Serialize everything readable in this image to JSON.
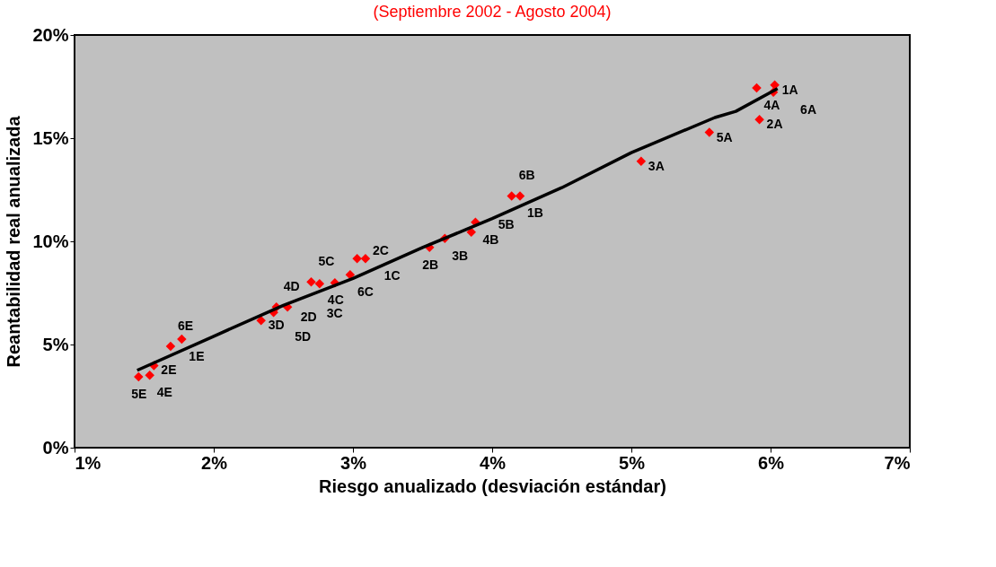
{
  "chart_data": {
    "type": "scatter",
    "subtitle": "(Septiembre 2002 - Agosto 2004)",
    "xlabel": "Riesgo anualizado (desviación estándar)",
    "ylabel": "Reantabilidad real anualizada",
    "series": [
      {
        "color": "#ff0000",
        "marker": "diamond",
        "x": [
          6.03,
          5.92,
          5.9,
          6.02,
          5.56,
          5.07,
          4.2,
          4.14,
          3.88,
          3.85,
          3.66,
          3.55,
          3.03,
          3.09,
          2.98,
          2.87,
          2.76,
          2.7,
          2.34,
          2.43,
          2.45,
          2.53,
          1.77,
          1.69,
          1.57,
          1.54,
          1.46
        ],
        "values": [
          17.58,
          15.9,
          17.43,
          17.23,
          15.28,
          13.88,
          12.2,
          12.2,
          10.92,
          10.45,
          10.14,
          9.71,
          9.16,
          9.16,
          8.38,
          7.99,
          7.95,
          8.03,
          6.16,
          6.55,
          6.82,
          6.82,
          5.26,
          4.91,
          3.98,
          3.51,
          3.43
        ]
      },
      {
        "type": "line",
        "color": "#000000",
        "line_style": "solid",
        "marker": "none",
        "x": [
          1.45,
          2.0,
          2.5,
          3.0,
          3.5,
          4.0,
          4.5,
          5.0,
          5.6,
          5.75,
          6.05
        ],
        "values": [
          3.75,
          5.4,
          6.9,
          8.2,
          9.7,
          11.1,
          12.6,
          14.3,
          16.0,
          16.3,
          17.4
        ]
      }
    ],
    "annotations": [
      {
        "text": "1A",
        "x": 6.03,
        "y": 17.58
      },
      {
        "text": "2A",
        "x": 5.92,
        "y": 15.9
      },
      {
        "text": "4A",
        "x": 5.9,
        "y": 17.43
      },
      {
        "text": "6A",
        "x": 6.02,
        "y": 17.23
      },
      {
        "text": "5A",
        "x": 5.56,
        "y": 15.28
      },
      {
        "text": "3A",
        "x": 5.07,
        "y": 13.88
      },
      {
        "text": "1B",
        "x": 4.2,
        "y": 12.2
      },
      {
        "text": "6B",
        "x": 4.14,
        "y": 12.2
      },
      {
        "text": "4B",
        "x": 3.88,
        "y": 10.92
      },
      {
        "text": "5B",
        "x": 3.85,
        "y": 10.45
      },
      {
        "text": "3B",
        "x": 3.66,
        "y": 10.14
      },
      {
        "text": "2B",
        "x": 3.55,
        "y": 9.71
      },
      {
        "text": "1C",
        "x": 3.03,
        "y": 9.16
      },
      {
        "text": "2C",
        "x": 3.09,
        "y": 9.16
      },
      {
        "text": "6C",
        "x": 2.98,
        "y": 8.38
      },
      {
        "text": "4C",
        "x": 2.87,
        "y": 7.99
      },
      {
        "text": "3C",
        "x": 2.76,
        "y": 7.95
      },
      {
        "text": "5C",
        "x": 2.7,
        "y": 8.03
      },
      {
        "text": "3D",
        "x": 2.34,
        "y": 6.16
      },
      {
        "text": "2D",
        "x": 2.43,
        "y": 6.55
      },
      {
        "text": "4D",
        "x": 2.45,
        "y": 6.82
      },
      {
        "text": "5D",
        "x": 2.53,
        "y": 6.82
      },
      {
        "text": "1E",
        "x": 1.77,
        "y": 5.26
      },
      {
        "text": "6E",
        "x": 1.69,
        "y": 4.91
      },
      {
        "text": "2E",
        "x": 1.57,
        "y": 3.98
      },
      {
        "text": "4E",
        "x": 1.54,
        "y": 3.51
      },
      {
        "text": "5E",
        "x": 1.46,
        "y": 3.43
      }
    ],
    "xlim": [
      1,
      7
    ],
    "xticks": [
      {
        "value": 1,
        "label": "1%"
      },
      {
        "value": 2,
        "label": "2%"
      },
      {
        "value": 3,
        "label": "3%"
      },
      {
        "value": 4,
        "label": "4%"
      },
      {
        "value": 5,
        "label": "5%"
      },
      {
        "value": 6,
        "label": "6%"
      },
      {
        "value": 7,
        "label": "7%"
      }
    ],
    "ylim": [
      0,
      20
    ],
    "yticks": [
      {
        "value": 0,
        "label": "0%"
      },
      {
        "value": 5,
        "label": "5%"
      },
      {
        "value": 10,
        "label": "10%"
      },
      {
        "value": 15,
        "label": "15%"
      },
      {
        "value": 20,
        "label": "20%"
      }
    ],
    "grid": false
  }
}
